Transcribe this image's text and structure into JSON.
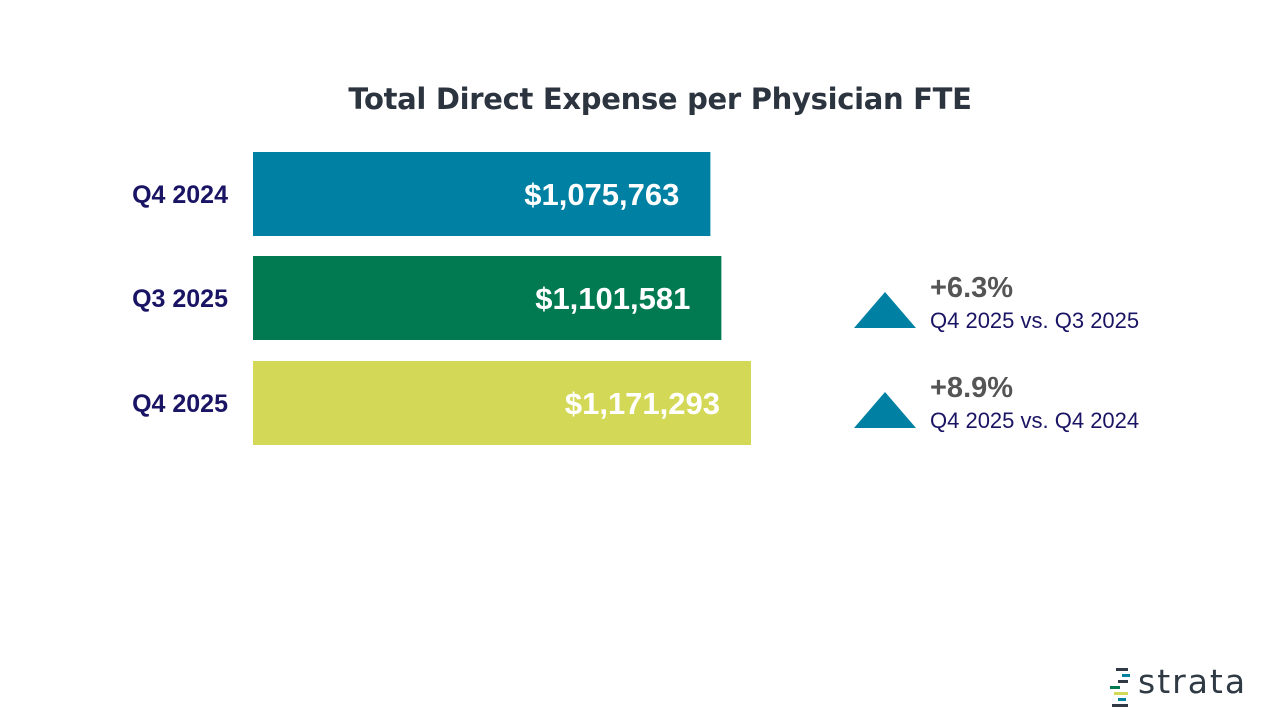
{
  "chart_data": {
    "type": "bar",
    "orientation": "horizontal",
    "title": "Total Direct Expense per Physician FTE",
    "categories": [
      "Q4 2024",
      "Q3 2025",
      "Q4 2025"
    ],
    "values": [
      1075763,
      1101581,
      1171293
    ],
    "value_labels": [
      "$1,075,763",
      "$1,101,581",
      "$1,171,293"
    ],
    "colors": [
      "#0081a3",
      "#017a51",
      "#d4d857"
    ],
    "xlim": [
      0,
      1171293
    ]
  },
  "changes": [
    {
      "pct": "+6.3%",
      "desc": "Q4 2025 vs. Q3 2025",
      "direction": "up",
      "color": "#0081a3"
    },
    {
      "pct": "+8.9%",
      "desc": "Q4 2025 vs. Q4 2024",
      "direction": "up",
      "color": "#0081a3"
    }
  ],
  "logo": {
    "text": "strata"
  }
}
